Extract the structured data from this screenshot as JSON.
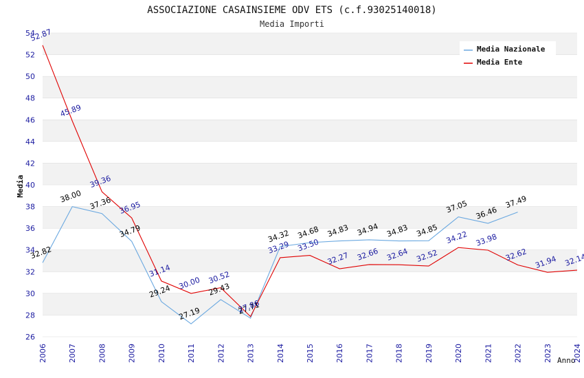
{
  "chart_data": {
    "type": "line",
    "title": "ASSOCIAZIONE CASAINSIEME ODV ETS (c.f.93025140018)",
    "subtitle": "Media Importi",
    "ylabel": "Media",
    "xlabel": "Anno",
    "ylim": [
      26,
      54
    ],
    "yticks": [
      "26",
      "28",
      "30",
      "32",
      "34",
      "36",
      "38",
      "40",
      "42",
      "44",
      "46",
      "48",
      "50",
      "52",
      "54"
    ],
    "categories": [
      "2006",
      "2007",
      "2008",
      "2009",
      "2010",
      "2011",
      "2012",
      "2013",
      "2014",
      "2015",
      "2016",
      "2017",
      "2018",
      "2019",
      "2020",
      "2021",
      "2022",
      "2023",
      "2024"
    ],
    "grid": "horizontal bands",
    "legend_position": "top-right",
    "series": [
      {
        "name": "Media Nazionale",
        "color": "#6aa8e0",
        "label_color": "#000000",
        "values": [
          32.82,
          38.0,
          37.36,
          34.79,
          29.24,
          27.19,
          29.43,
          27.71,
          34.32,
          34.68,
          34.83,
          34.94,
          34.83,
          34.85,
          37.05,
          36.46,
          37.49,
          null,
          null
        ],
        "labels": [
          "32.82",
          "38.00",
          "37.36",
          "34.79",
          "29.24",
          "27.19",
          "29.43",
          "27.71",
          "34.32",
          "34.68",
          "34.83",
          "34.94",
          "34.83",
          "34.85",
          "37.05",
          "36.46",
          "37.49",
          "",
          ""
        ]
      },
      {
        "name": "Media Ente",
        "color": "#e00000",
        "label_color": "#1a1aa0",
        "values": [
          52.87,
          45.89,
          39.36,
          36.95,
          31.14,
          30.0,
          30.52,
          27.86,
          33.29,
          33.5,
          32.27,
          32.66,
          32.64,
          32.52,
          34.22,
          33.98,
          32.62,
          31.94,
          32.14
        ],
        "labels": [
          "52.87",
          "45.89",
          "39.36",
          "36.95",
          "31.14",
          "30.00",
          "30.52",
          "27.86",
          "33.29",
          "33.50",
          "32.27",
          "32.66",
          "32.64",
          "32.52",
          "34.22",
          "33.98",
          "32.62",
          "31.94",
          "32.14"
        ]
      }
    ]
  },
  "colors": {
    "band": "#f2f2f2",
    "grid": "#dddddd",
    "axis_label": "#1a1aa0"
  }
}
